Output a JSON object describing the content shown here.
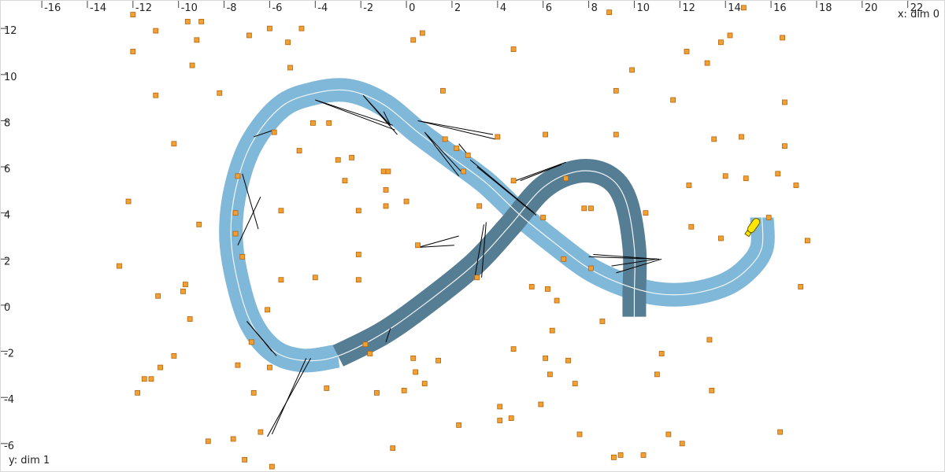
{
  "axes": {
    "x_label": "x: dim 0",
    "y_label": "y: dim 1",
    "x_ticks": [
      "-16",
      "-14",
      "-12",
      "-10",
      "-8",
      "-6",
      "-4",
      "-2",
      "0",
      "2",
      "4",
      "6",
      "8",
      "10",
      "12",
      "14",
      "16",
      "18",
      "20",
      "22"
    ],
    "y_ticks": [
      "12",
      "10",
      "8",
      "6",
      "4",
      "2",
      "0",
      "-2",
      "-4",
      "-6"
    ]
  },
  "colors": {
    "bg": "#ffffff",
    "track_light": "#7fb8d8",
    "track_dark": "#557d93",
    "centerline": "#f2f6f8",
    "point_fill": "#f3a032",
    "point_stroke": "#b4650f",
    "ray": "#000000",
    "agent_fill": "#ffe800",
    "agent_stroke": "#6b5d00",
    "tick": "#444444"
  },
  "icons": {
    "agent": "capsule-probe-icon",
    "point": "square-marker-icon"
  },
  "chart_data": {
    "type": "scatter",
    "xlabel": "x: dim 0",
    "ylabel": "y: dim 1",
    "xlim": [
      -17.8,
      23.6
    ],
    "ylim": [
      -7.2,
      13.2
    ],
    "grid": false,
    "trajectory": [
      [
        15.6,
        3.8
      ],
      [
        15.6,
        2.5
      ],
      [
        15.0,
        1.6
      ],
      [
        14.0,
        0.9
      ],
      [
        12.5,
        0.5
      ],
      [
        11.0,
        0.5
      ],
      [
        9.5,
        0.9
      ],
      [
        8.0,
        1.6
      ],
      [
        6.5,
        2.7
      ],
      [
        5.0,
        3.9
      ],
      [
        3.5,
        5.3
      ],
      [
        2.0,
        6.4
      ],
      [
        0.5,
        7.5
      ],
      [
        -1.0,
        8.7
      ],
      [
        -2.5,
        9.3
      ],
      [
        -4.0,
        9.2
      ],
      [
        -5.5,
        8.6
      ],
      [
        -6.8,
        7.0
      ],
      [
        -7.5,
        5.0
      ],
      [
        -7.7,
        3.0
      ],
      [
        -7.4,
        1.0
      ],
      [
        -6.8,
        -0.8
      ],
      [
        -5.8,
        -2.0
      ],
      [
        -4.5,
        -2.4
      ],
      [
        -3.0,
        -2.2
      ],
      [
        -1.0,
        -1.2
      ],
      [
        1.0,
        0.2
      ],
      [
        3.0,
        1.8
      ],
      [
        4.5,
        3.4
      ],
      [
        6.0,
        5.1
      ],
      [
        7.5,
        5.8
      ],
      [
        8.8,
        5.6
      ],
      [
        9.6,
        4.6
      ],
      [
        10.0,
        2.5
      ],
      [
        10.0,
        0.5
      ],
      [
        10.0,
        -0.5
      ]
    ],
    "highlighted_segment_start": 24,
    "agent": {
      "x": 15.2,
      "y": 3.4,
      "heading_deg": 55
    },
    "points": [
      [
        -12,
        12.6
      ],
      [
        -11,
        11.9
      ],
      [
        -9.6,
        12.3
      ],
      [
        -9,
        12.3
      ],
      [
        -9.2,
        11.5
      ],
      [
        -6.9,
        11.7
      ],
      [
        -6,
        12
      ],
      [
        -5.2,
        11.4
      ],
      [
        -4.6,
        12
      ],
      [
        -12,
        11
      ],
      [
        -9.4,
        10.4
      ],
      [
        -5.1,
        10.3
      ],
      [
        -11,
        9.1
      ],
      [
        -8.2,
        9.2
      ],
      [
        -10.2,
        7
      ],
      [
        -12.2,
        4.5
      ],
      [
        -9.1,
        3.5
      ],
      [
        -12.6,
        1.7
      ],
      [
        -9.7,
        0.9
      ],
      [
        -9.8,
        0.6
      ],
      [
        -10.9,
        0.4
      ],
      [
        -9.5,
        -0.6
      ],
      [
        -10.2,
        -2.2
      ],
      [
        -10.8,
        -2.7
      ],
      [
        -11.5,
        -3.2
      ],
      [
        -11.2,
        -3.2
      ],
      [
        -11.8,
        -3.8
      ],
      [
        -8.7,
        -5.9
      ],
      [
        -7.1,
        -6.7
      ],
      [
        -5.9,
        -7
      ],
      [
        -4.1,
        7.9
      ],
      [
        -3.4,
        7.9
      ],
      [
        -3,
        6.3
      ],
      [
        -2.4,
        6.4
      ],
      [
        -2.7,
        5.4
      ],
      [
        -4.7,
        6.7
      ],
      [
        -5.8,
        7.5
      ],
      [
        -5.5,
        4.1
      ],
      [
        -2.1,
        4.1
      ],
      [
        -0.9,
        4.3
      ],
      [
        -1,
        5.8
      ],
      [
        -0.8,
        5.8
      ],
      [
        -0.9,
        5
      ],
      [
        -7.4,
        5.6
      ],
      [
        -7.5,
        4
      ],
      [
        -7.5,
        3.1
      ],
      [
        -7.2,
        2.1
      ],
      [
        -6.1,
        -0.2
      ],
      [
        -6.8,
        -1.6
      ],
      [
        -7.4,
        -2.6
      ],
      [
        -6,
        -2.7
      ],
      [
        -6.7,
        -3.8
      ],
      [
        -7.6,
        -5.8
      ],
      [
        -6.4,
        -5.5
      ],
      [
        -5.5,
        1.1
      ],
      [
        -4,
        1.2
      ],
      [
        -2.1,
        2.2
      ],
      [
        -2.1,
        1.1
      ],
      [
        -1.8,
        -1.7
      ],
      [
        -1.6,
        -2.1
      ],
      [
        -3.5,
        -3.6
      ],
      [
        -1.3,
        -3.8
      ],
      [
        -0.1,
        -3.7
      ],
      [
        -0.6,
        -6.2
      ],
      [
        0,
        4.5
      ],
      [
        0.5,
        2.6
      ],
      [
        0.3,
        -2.3
      ],
      [
        0.4,
        -2.9
      ],
      [
        0.8,
        -3.4
      ],
      [
        1.4,
        -2.4
      ],
      [
        0.7,
        11.8
      ],
      [
        0.3,
        11.5
      ],
      [
        1.6,
        9.3
      ],
      [
        1.7,
        7.2
      ],
      [
        2.2,
        6.8
      ],
      [
        2.5,
        5.8
      ],
      [
        2.7,
        6.5
      ],
      [
        4.0,
        7.3
      ],
      [
        4.7,
        5.4
      ],
      [
        3.1,
        1.2
      ],
      [
        4.7,
        11.1
      ],
      [
        6.1,
        7.4
      ],
      [
        6,
        3.8
      ],
      [
        7.0,
        5.5
      ],
      [
        8.1,
        4.2
      ],
      [
        6.9,
        2.0
      ],
      [
        5.5,
        0.8
      ],
      [
        6.2,
        0.7
      ],
      [
        6.6,
        0.2
      ],
      [
        8.1,
        1.6
      ],
      [
        8.6,
        -0.7
      ],
      [
        6.4,
        -1.1
      ],
      [
        4.7,
        -1.9
      ],
      [
        6.1,
        -2.3
      ],
      [
        7.1,
        -2.4
      ],
      [
        6.3,
        -3
      ],
      [
        7.4,
        -3.4
      ],
      [
        5.9,
        -4.3
      ],
      [
        4.1,
        -4.4
      ],
      [
        4.1,
        -5
      ],
      [
        4.6,
        -4.9
      ],
      [
        2.3,
        -5.2
      ],
      [
        7.6,
        -5.6
      ],
      [
        9.4,
        -6.5
      ],
      [
        10.4,
        -6.5
      ],
      [
        11.5,
        -5.6
      ],
      [
        12.1,
        -6
      ],
      [
        11.2,
        -2.1
      ],
      [
        11.0,
        -3
      ],
      [
        13.4,
        -3.7
      ],
      [
        13.3,
        -1.5
      ],
      [
        8.9,
        12.7
      ],
      [
        9.9,
        10.2
      ],
      [
        9.2,
        9.3
      ],
      [
        9.2,
        7.4
      ],
      [
        11.7,
        8.9
      ],
      [
        12.3,
        11
      ],
      [
        13.2,
        10.5
      ],
      [
        13.8,
        11.4
      ],
      [
        14.2,
        11.7
      ],
      [
        14.8,
        12.9
      ],
      [
        16.5,
        11.6
      ],
      [
        16.6,
        8.8
      ],
      [
        13.5,
        7.2
      ],
      [
        14.7,
        7.3
      ],
      [
        16.6,
        6.9
      ],
      [
        12.4,
        5.2
      ],
      [
        14.0,
        5.6
      ],
      [
        14.9,
        5.5
      ],
      [
        16.3,
        5.7
      ],
      [
        17.1,
        5.2
      ],
      [
        10.5,
        4
      ],
      [
        12.5,
        3.4
      ],
      [
        13.8,
        2.9
      ],
      [
        15.9,
        3.8
      ],
      [
        17.6,
        2.8
      ],
      [
        17.3,
        0.8
      ],
      [
        9.1,
        -6.6
      ],
      [
        16.4,
        -5.5
      ],
      [
        3.2,
        4.3
      ],
      [
        7.8,
        4.2
      ]
    ],
    "rays": [
      [
        [
          -4.0,
          8.9
        ],
        [
          -0.5,
          7.6
        ]
      ],
      [
        [
          -4.0,
          8.9
        ],
        [
          -0.6,
          7.8
        ]
      ],
      [
        [
          -1.9,
          9.1
        ],
        [
          -0.4,
          7.4
        ]
      ],
      [
        [
          -1.9,
          9.1
        ],
        [
          -0.7,
          7.8
        ]
      ],
      [
        [
          -1.0,
          8.4
        ],
        [
          -0.7,
          7.8
        ]
      ],
      [
        [
          0.5,
          8.0
        ],
        [
          3.9,
          7.2
        ]
      ],
      [
        [
          0.5,
          8.0
        ],
        [
          3.8,
          7.4
        ]
      ],
      [
        [
          0.8,
          7.5
        ],
        [
          2.3,
          5.6
        ]
      ],
      [
        [
          0.8,
          7.5
        ],
        [
          2.4,
          5.8
        ]
      ],
      [
        [
          2.3,
          7.0
        ],
        [
          2.8,
          6.4
        ]
      ],
      [
        [
          2.8,
          6.3
        ],
        [
          5.6,
          4.0
        ]
      ],
      [
        [
          3.1,
          6.0
        ],
        [
          5.7,
          3.9
        ]
      ],
      [
        [
          4.8,
          5.4
        ],
        [
          7.0,
          6.2
        ]
      ],
      [
        [
          5.0,
          5.4
        ],
        [
          6.8,
          6.1
        ]
      ],
      [
        [
          -7.2,
          5.7
        ],
        [
          -6.5,
          3.3
        ]
      ],
      [
        [
          -7.4,
          2.6
        ],
        [
          -6.4,
          4.7
        ]
      ],
      [
        [
          -6.7,
          7.3
        ],
        [
          -5.8,
          7.6
        ]
      ],
      [
        [
          -7.0,
          -0.7
        ],
        [
          -5.9,
          -2.0
        ]
      ],
      [
        [
          -7.0,
          -0.7
        ],
        [
          -5.7,
          -2.2
        ]
      ],
      [
        [
          -4.2,
          -2.3
        ],
        [
          -6.1,
          -5.7
        ]
      ],
      [
        [
          -4.4,
          -2.3
        ],
        [
          -5.9,
          -5.6
        ]
      ],
      [
        [
          0.4,
          2.5
        ],
        [
          2.1,
          2.6
        ]
      ],
      [
        [
          0.5,
          2.5
        ],
        [
          2.3,
          3.0
        ]
      ],
      [
        [
          3.3,
          1.2
        ],
        [
          3.5,
          3.6
        ]
      ],
      [
        [
          3.0,
          1.2
        ],
        [
          3.4,
          3.5
        ]
      ],
      [
        [
          8.0,
          2.1
        ],
        [
          11.1,
          2.0
        ]
      ],
      [
        [
          8.2,
          2.2
        ],
        [
          11.0,
          2.0
        ]
      ],
      [
        [
          9.2,
          1.4
        ],
        [
          11.2,
          2.0
        ]
      ],
      [
        [
          9.0,
          1.7
        ],
        [
          11.0,
          2.0
        ]
      ],
      [
        [
          -0.7,
          -1.0
        ],
        [
          -0.9,
          -1.6
        ]
      ]
    ]
  }
}
